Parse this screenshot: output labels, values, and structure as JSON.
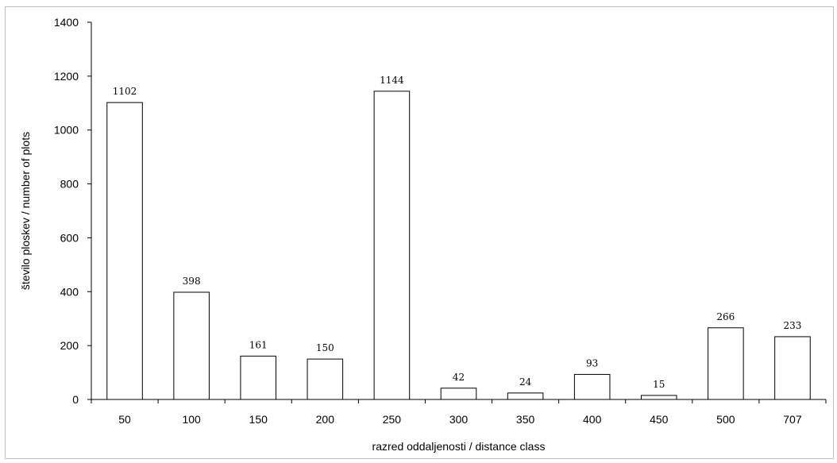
{
  "chart_data": {
    "type": "bar",
    "title": "",
    "xlabel": "razred oddaljenosti / distance class",
    "ylabel": "število ploskev / number of plots",
    "categories": [
      "50",
      "100",
      "150",
      "200",
      "250",
      "300",
      "350",
      "400",
      "450",
      "500",
      "707"
    ],
    "values": [
      1102,
      398,
      161,
      150,
      1144,
      42,
      24,
      93,
      15,
      266,
      233
    ],
    "data_labels": [
      "1102",
      "398",
      "161",
      "150",
      "1144",
      "42",
      "24",
      "93",
      "15",
      "266",
      "233"
    ],
    "ylim": [
      0,
      1400
    ],
    "yticks": [
      "0",
      "200",
      "400",
      "600",
      "800",
      "1000",
      "1200",
      "1400"
    ],
    "grid": false,
    "legend": "none",
    "bar_fill": "#ffffff",
    "bar_stroke": "#000000"
  }
}
